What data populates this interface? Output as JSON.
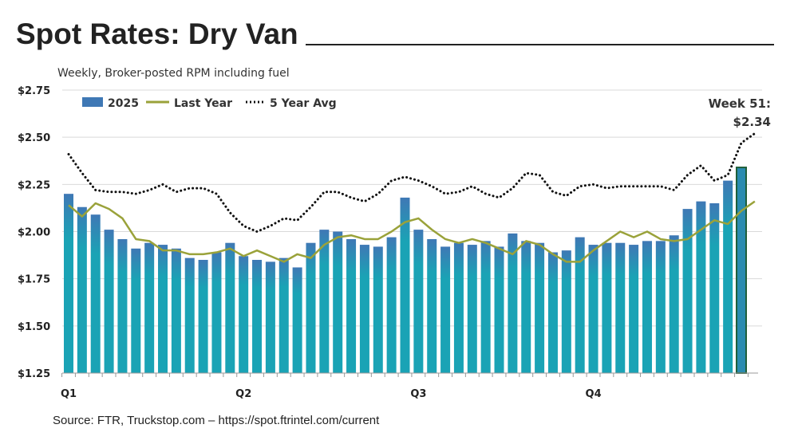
{
  "title": "Spot Rates: Dry Van",
  "subtitle": "Weekly, Broker-posted RPM including fuel",
  "source": "Source: FTR, Truckstop.com – https://spot.ftrintel.com/current",
  "colors": {
    "bars": "#1aa3b5",
    "bar_top": "#3f78b5",
    "last_year": "#9aa23a",
    "five_year": "#111111",
    "highlight_outline": "#1f5f3a"
  },
  "chart_data": {
    "type": "bar",
    "ylim": [
      1.25,
      2.75
    ],
    "yticks": [
      1.25,
      1.5,
      1.75,
      2.0,
      2.25,
      2.5,
      2.75
    ],
    "ytick_labels": [
      "$1.25",
      "$1.50",
      "$1.75",
      "$2.00",
      "$2.25",
      "$2.50",
      "$2.75"
    ],
    "xtick_labels": [
      {
        "label": "Q1",
        "week": 1
      },
      {
        "label": "Q2",
        "week": 14
      },
      {
        "label": "Q3",
        "week": 27
      },
      {
        "label": "Q4",
        "week": 40
      }
    ],
    "grid": true,
    "legend_placement": "top-left",
    "annotation": {
      "line1": "Week 51:",
      "line2": "$2.34",
      "week": 51
    },
    "series": [
      {
        "name": "2025",
        "type": "bar",
        "values": [
          2.2,
          2.13,
          2.09,
          2.01,
          1.96,
          1.91,
          1.94,
          1.93,
          1.91,
          1.86,
          1.85,
          1.89,
          1.94,
          1.87,
          1.85,
          1.84,
          1.86,
          1.81,
          1.94,
          2.01,
          2.0,
          1.96,
          1.93,
          1.92,
          1.97,
          2.18,
          2.01,
          1.96,
          1.92,
          1.94,
          1.93,
          1.95,
          1.92,
          1.99,
          1.95,
          1.94,
          1.89,
          1.9,
          1.97,
          1.93,
          1.94,
          1.94,
          1.93,
          1.95,
          1.95,
          1.98,
          2.12,
          2.16,
          2.15,
          2.27,
          2.34
        ]
      },
      {
        "name": "Last Year",
        "type": "line",
        "values": [
          2.14,
          2.08,
          2.15,
          2.12,
          2.07,
          1.96,
          1.95,
          1.9,
          1.9,
          1.88,
          1.88,
          1.89,
          1.91,
          1.87,
          1.9,
          1.87,
          1.84,
          1.88,
          1.86,
          1.93,
          1.97,
          1.98,
          1.96,
          1.96,
          2.0,
          2.05,
          2.07,
          2.01,
          1.96,
          1.94,
          1.96,
          1.94,
          1.91,
          1.88,
          1.95,
          1.93,
          1.88,
          1.84,
          1.84,
          1.9,
          1.95,
          2.0,
          1.97,
          2.0,
          1.96,
          1.95,
          1.96,
          2.01,
          2.06,
          2.04,
          2.11,
          2.16
        ]
      },
      {
        "name": "5 Year Avg",
        "type": "line",
        "style": "dotted",
        "values": [
          2.41,
          2.31,
          2.22,
          2.21,
          2.21,
          2.2,
          2.22,
          2.25,
          2.21,
          2.23,
          2.23,
          2.2,
          2.1,
          2.03,
          2.0,
          2.03,
          2.07,
          2.06,
          2.13,
          2.21,
          2.21,
          2.18,
          2.16,
          2.2,
          2.27,
          2.29,
          2.27,
          2.24,
          2.2,
          2.21,
          2.24,
          2.2,
          2.18,
          2.23,
          2.31,
          2.3,
          2.21,
          2.19,
          2.24,
          2.25,
          2.23,
          2.24,
          2.24,
          2.24,
          2.24,
          2.22,
          2.3,
          2.35,
          2.27,
          2.3,
          2.47,
          2.52
        ]
      }
    ]
  }
}
